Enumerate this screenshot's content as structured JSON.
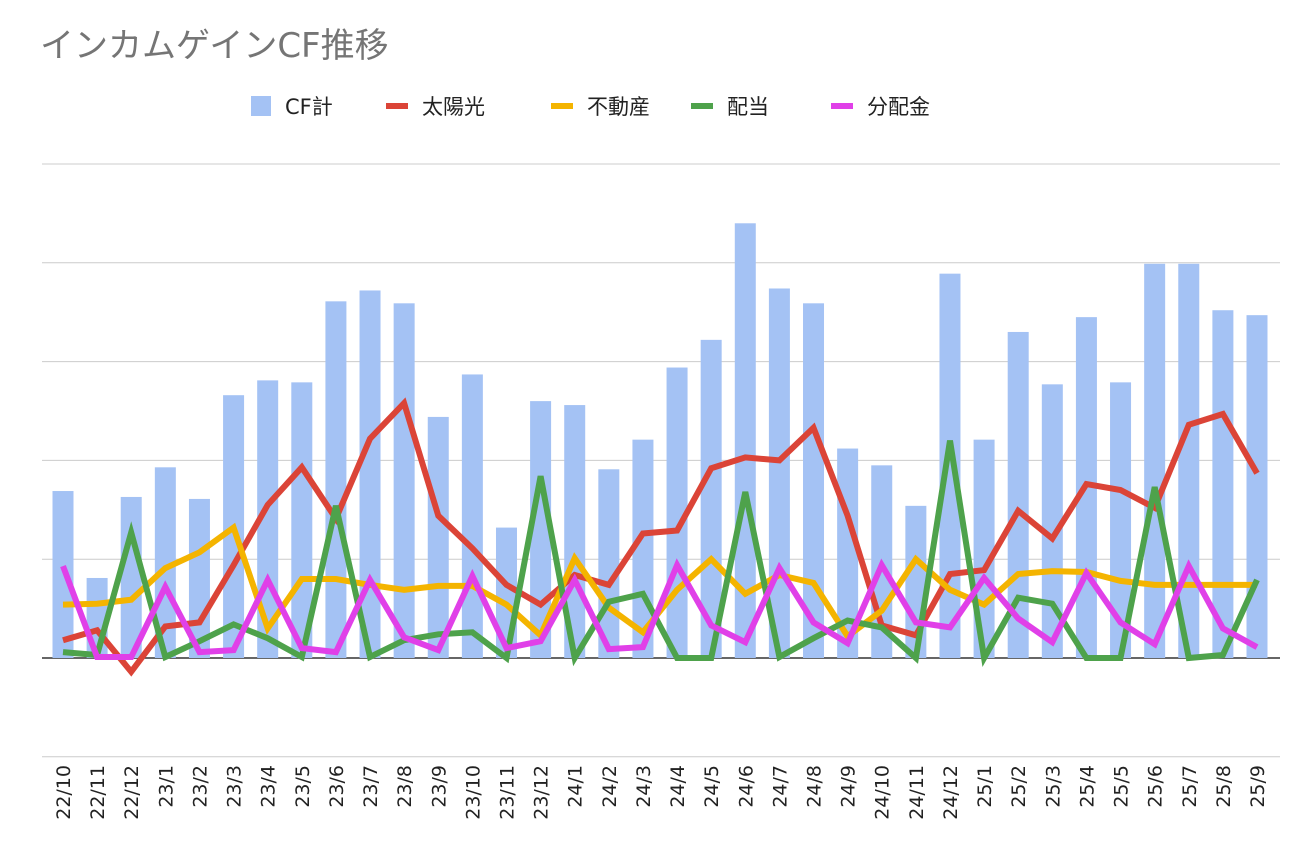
{
  "chart_data": {
    "type": "bar",
    "title": "インカムゲインCF推移",
    "xlabel": "",
    "ylabel": "",
    "ylim": [
      -1,
      5
    ],
    "grid": true,
    "legend_position": "top",
    "categories": [
      "22/10",
      "22/11",
      "22/12",
      "23/1",
      "23/2",
      "23/3",
      "23/4",
      "23/5",
      "23/6",
      "23/7",
      "23/8",
      "23/9",
      "23/10",
      "23/11",
      "23/12",
      "24/1",
      "24/2",
      "24/3",
      "24/4",
      "24/5",
      "24/6",
      "24/7",
      "24/8",
      "24/9",
      "24/10",
      "24/11",
      "24/12",
      "25/1",
      "25/2",
      "25/3",
      "25/4",
      "25/5",
      "25/6",
      "25/7",
      "25/8",
      "25/9"
    ],
    "series": [
      {
        "name": "CF計",
        "type": "bar",
        "color": "#a4c2f4",
        "values": [
          1.69,
          0.81,
          1.63,
          1.93,
          1.61,
          2.66,
          2.81,
          2.79,
          3.61,
          3.72,
          3.59,
          2.44,
          2.87,
          1.32,
          2.6,
          2.56,
          1.91,
          2.21,
          2.94,
          3.22,
          4.4,
          3.74,
          3.59,
          2.12,
          1.95,
          1.54,
          3.89,
          2.21,
          3.3,
          2.77,
          3.45,
          2.79,
          3.99,
          3.99,
          3.52,
          3.47
        ]
      },
      {
        "name": "太陽光",
        "type": "line",
        "color": "#db4437",
        "values": [
          0.18,
          0.28,
          -0.14,
          0.32,
          0.36,
          0.94,
          1.55,
          1.93,
          1.41,
          2.22,
          2.58,
          1.44,
          1.11,
          0.74,
          0.54,
          0.84,
          0.74,
          1.26,
          1.29,
          1.92,
          2.03,
          2.0,
          2.33,
          1.44,
          0.33,
          0.23,
          0.85,
          0.89,
          1.49,
          1.21,
          1.76,
          1.7,
          1.52,
          2.36,
          2.47,
          1.87
        ]
      },
      {
        "name": "不動産",
        "type": "line",
        "color": "#f4b400",
        "values": [
          0.54,
          0.55,
          0.59,
          0.91,
          1.07,
          1.32,
          0.3,
          0.8,
          0.8,
          0.74,
          0.69,
          0.73,
          0.73,
          0.54,
          0.23,
          1.01,
          0.51,
          0.26,
          0.69,
          1.0,
          0.65,
          0.84,
          0.76,
          0.22,
          0.48,
          1.0,
          0.69,
          0.54,
          0.85,
          0.88,
          0.87,
          0.78,
          0.74,
          0.74,
          0.74,
          0.74
        ]
      },
      {
        "name": "配当",
        "type": "line",
        "color": "#4ea24b",
        "values": [
          0.06,
          0.03,
          1.27,
          0.01,
          0.17,
          0.34,
          0.2,
          0.01,
          1.54,
          0.01,
          0.18,
          0.24,
          0.26,
          0,
          1.84,
          0,
          0.57,
          0.65,
          0,
          0,
          1.68,
          0.01,
          0.2,
          0.38,
          0.31,
          0,
          2.2,
          0,
          0.61,
          0.55,
          0,
          0,
          1.73,
          0,
          0.03,
          0.79
        ]
      },
      {
        "name": "分配金",
        "type": "line",
        "color": "#e040e8",
        "values": [
          0.93,
          0.01,
          0.01,
          0.72,
          0.06,
          0.08,
          0.79,
          0.1,
          0.06,
          0.79,
          0.21,
          0.08,
          0.83,
          0.1,
          0.17,
          0.79,
          0.09,
          0.11,
          0.94,
          0.33,
          0.16,
          0.91,
          0.36,
          0.15,
          0.94,
          0.36,
          0.31,
          0.81,
          0.4,
          0.16,
          0.86,
          0.36,
          0.14,
          0.93,
          0.3,
          0.11
        ]
      }
    ]
  }
}
